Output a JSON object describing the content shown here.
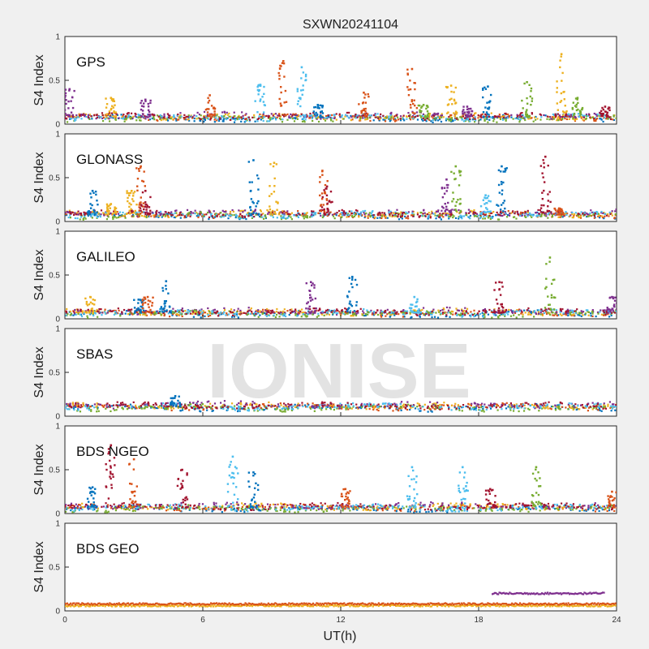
{
  "chart_data": {
    "type": "scatter",
    "title": "SXWN20241104",
    "xlabel": "UT(h)",
    "ylabel": "S4 Index",
    "xlim": [
      0,
      24
    ],
    "ylim": [
      0,
      1
    ],
    "xticks": [
      0,
      6,
      12,
      18,
      24
    ],
    "yticks": [
      0,
      0.5,
      1
    ],
    "ytick_labels": [
      "0",
      "0.5",
      "1"
    ],
    "watermark": "IONISE",
    "grid": false,
    "colors": [
      "#0072BD",
      "#D95319",
      "#EDB120",
      "#7E2F8E",
      "#77AC30",
      "#4DBEEE",
      "#A2142F"
    ],
    "panels": [
      {
        "label": "GPS",
        "baseline": 0.08,
        "peaks": [
          {
            "x": 0.2,
            "y": 0.4,
            "c": 3
          },
          {
            "x": 2.0,
            "y": 0.3,
            "c": 2
          },
          {
            "x": 3.5,
            "y": 0.28,
            "c": 3
          },
          {
            "x": 6.3,
            "y": 0.33,
            "c": 1
          },
          {
            "x": 8.5,
            "y": 0.45,
            "c": 5
          },
          {
            "x": 9.5,
            "y": 0.72,
            "c": 1
          },
          {
            "x": 10.3,
            "y": 0.65,
            "c": 5
          },
          {
            "x": 11.0,
            "y": 0.22,
            "c": 0
          },
          {
            "x": 13.0,
            "y": 0.36,
            "c": 1
          },
          {
            "x": 15.1,
            "y": 0.63,
            "c": 1
          },
          {
            "x": 15.6,
            "y": 0.22,
            "c": 4
          },
          {
            "x": 16.8,
            "y": 0.44,
            "c": 2
          },
          {
            "x": 17.5,
            "y": 0.2,
            "c": 3
          },
          {
            "x": 18.4,
            "y": 0.43,
            "c": 0
          },
          {
            "x": 20.1,
            "y": 0.48,
            "c": 4
          },
          {
            "x": 21.6,
            "y": 0.8,
            "c": 2
          },
          {
            "x": 22.3,
            "y": 0.3,
            "c": 4
          },
          {
            "x": 23.5,
            "y": 0.2,
            "c": 6
          }
        ]
      },
      {
        "label": "GLONASS",
        "baseline": 0.08,
        "peaks": [
          {
            "x": 1.2,
            "y": 0.35,
            "c": 0
          },
          {
            "x": 2.0,
            "y": 0.2,
            "c": 2
          },
          {
            "x": 2.9,
            "y": 0.35,
            "c": 2
          },
          {
            "x": 3.3,
            "y": 0.63,
            "c": 1
          },
          {
            "x": 3.5,
            "y": 0.35,
            "c": 6
          },
          {
            "x": 8.2,
            "y": 0.7,
            "c": 0
          },
          {
            "x": 9.1,
            "y": 0.67,
            "c": 2
          },
          {
            "x": 11.2,
            "y": 0.58,
            "c": 1
          },
          {
            "x": 11.4,
            "y": 0.4,
            "c": 6
          },
          {
            "x": 16.6,
            "y": 0.48,
            "c": 3
          },
          {
            "x": 17.0,
            "y": 0.63,
            "c": 4
          },
          {
            "x": 18.3,
            "y": 0.3,
            "c": 5
          },
          {
            "x": 19.0,
            "y": 0.63,
            "c": 0
          },
          {
            "x": 20.9,
            "y": 0.74,
            "c": 6
          },
          {
            "x": 21.5,
            "y": 0.15,
            "c": 1
          }
        ]
      },
      {
        "label": "GALILEO",
        "baseline": 0.07,
        "peaks": [
          {
            "x": 1.1,
            "y": 0.25,
            "c": 2
          },
          {
            "x": 3.2,
            "y": 0.22,
            "c": 0
          },
          {
            "x": 3.6,
            "y": 0.25,
            "c": 1
          },
          {
            "x": 4.4,
            "y": 0.43,
            "c": 0
          },
          {
            "x": 10.7,
            "y": 0.42,
            "c": 3
          },
          {
            "x": 12.5,
            "y": 0.48,
            "c": 0
          },
          {
            "x": 15.2,
            "y": 0.25,
            "c": 5
          },
          {
            "x": 18.9,
            "y": 0.42,
            "c": 6
          },
          {
            "x": 21.1,
            "y": 0.7,
            "c": 4
          },
          {
            "x": 23.8,
            "y": 0.25,
            "c": 3
          }
        ]
      },
      {
        "label": "SBAS",
        "baseline": 0.11,
        "peaks": [
          {
            "x": 4.8,
            "y": 0.23,
            "c": 0
          }
        ]
      },
      {
        "label": "BDS NGEO",
        "baseline": 0.07,
        "peaks": [
          {
            "x": 1.2,
            "y": 0.3,
            "c": 0
          },
          {
            "x": 2.0,
            "y": 0.78,
            "c": 6
          },
          {
            "x": 3.0,
            "y": 0.62,
            "c": 1
          },
          {
            "x": 5.1,
            "y": 0.5,
            "c": 6
          },
          {
            "x": 7.3,
            "y": 0.65,
            "c": 5
          },
          {
            "x": 8.2,
            "y": 0.47,
            "c": 0
          },
          {
            "x": 12.2,
            "y": 0.28,
            "c": 1
          },
          {
            "x": 15.1,
            "y": 0.53,
            "c": 5
          },
          {
            "x": 17.3,
            "y": 0.53,
            "c": 5
          },
          {
            "x": 18.5,
            "y": 0.28,
            "c": 6
          },
          {
            "x": 20.5,
            "y": 0.53,
            "c": 4
          },
          {
            "x": 23.8,
            "y": 0.25,
            "c": 1
          }
        ]
      },
      {
        "label": "BDS GEO",
        "baseline": 0.08,
        "peaks": [],
        "segments": [
          {
            "x0": 0,
            "x1": 24,
            "y": 0.06,
            "c": 2
          },
          {
            "x0": 0,
            "x1": 24,
            "y": 0.08,
            "c": 1
          },
          {
            "x0": 18.6,
            "x1": 23.5,
            "y": 0.2,
            "c": 3
          }
        ]
      }
    ]
  }
}
